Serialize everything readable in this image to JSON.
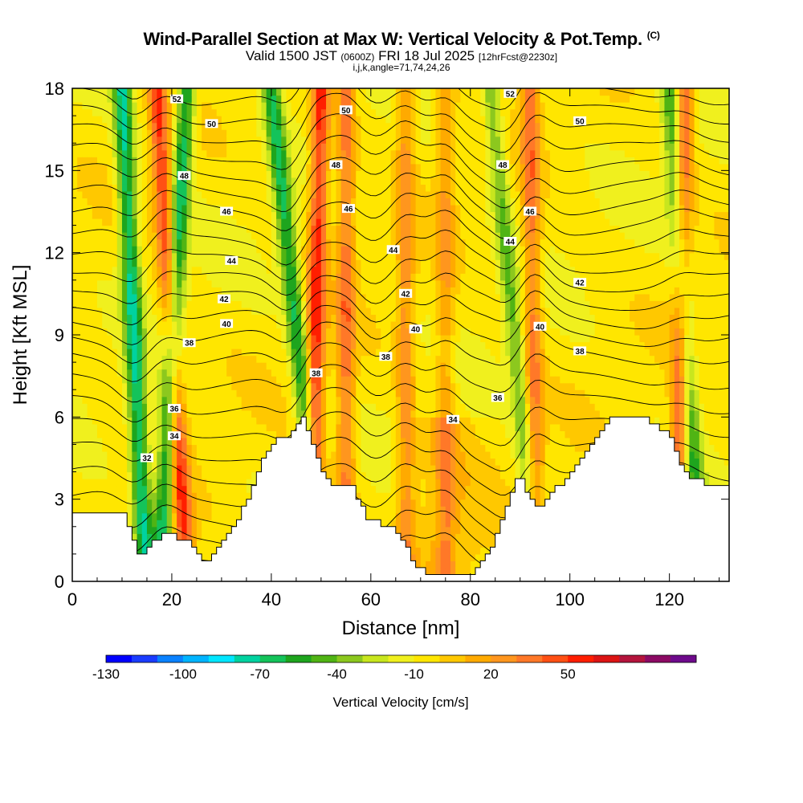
{
  "header": {
    "title": "Wind-Parallel Section at Max W: Vertical Velocity & Pot.Temp.",
    "copyright_mark": "(C)",
    "valid_prefix": "Valid 1500 JST",
    "valid_utc": "(0600Z)",
    "valid_date": "FRI 18 Jul 2025",
    "forecast_tag": "[12hrFcst@2230z]",
    "grid_info": "i,j,k,angle=71,74,24,26"
  },
  "colors": {
    "terrain": "#ffffff",
    "contour": "#000000",
    "palette": [
      "#0000ff",
      "#1a3cff",
      "#0a82ff",
      "#00b4ff",
      "#00e6ff",
      "#00d2a0",
      "#14c35a",
      "#1ea51e",
      "#50b414",
      "#8cc81e",
      "#c8e61e",
      "#f0f01e",
      "#ffe600",
      "#ffc800",
      "#ffaa00",
      "#ff961e",
      "#ff7828",
      "#ff5014",
      "#ff1e00",
      "#dc1414",
      "#b4143c",
      "#8c0a64",
      "#6e0a8c"
    ]
  },
  "chart_data": {
    "type": "heatmap",
    "xlabel": "Distance [nm]",
    "ylabel": "Height [Kft MSL]",
    "xlim": [
      0,
      132
    ],
    "ylim": [
      0,
      18
    ],
    "x_ticks": [
      0,
      20,
      40,
      60,
      80,
      100,
      120
    ],
    "y_ticks": [
      0,
      3,
      6,
      9,
      12,
      15,
      18
    ],
    "colorbar": {
      "label": "Vertical Velocity [cm/s]",
      "min": -130,
      "step": 10,
      "levels": 23,
      "tick_labels": [
        -130,
        -100,
        -70,
        -40,
        -10,
        20,
        50
      ]
    },
    "terrain_profile": {
      "x": [
        0,
        2,
        4,
        6,
        8,
        10,
        12,
        13,
        14,
        15,
        16,
        17,
        18,
        19,
        20,
        21,
        22,
        23,
        24,
        25,
        26,
        27,
        28,
        30,
        32,
        34,
        36,
        38,
        40,
        42,
        44,
        45,
        46,
        47,
        48,
        49,
        50,
        52,
        54,
        56,
        58,
        60,
        62,
        64,
        66,
        68,
        70,
        72,
        74,
        76,
        78,
        80,
        82,
        84,
        86,
        88,
        90,
        91,
        92,
        93,
        94,
        95,
        96,
        97,
        98,
        100,
        102,
        104,
        106,
        108,
        110,
        112,
        114,
        116,
        118,
        120,
        121,
        122,
        123,
        124,
        125,
        126,
        128,
        130,
        132
      ],
      "y": [
        2.3,
        2.6,
        2.6,
        2.6,
        2.6,
        2.6,
        1.8,
        1.1,
        1.0,
        1.1,
        1.4,
        1.6,
        1.6,
        1.7,
        1.8,
        1.6,
        1.5,
        1.4,
        1.4,
        1.1,
        0.8,
        0.7,
        0.9,
        1.3,
        1.8,
        2.5,
        3.3,
        4.2,
        4.9,
        5.3,
        5.3,
        5.6,
        6.0,
        5.8,
        5.4,
        4.8,
        4.0,
        3.6,
        3.6,
        3.6,
        2.8,
        2.2,
        2.1,
        2.0,
        1.5,
        1.0,
        0.4,
        0.3,
        0.3,
        0.3,
        0.3,
        0.3,
        0.5,
        1.1,
        2.0,
        3.1,
        3.8,
        3.6,
        3.1,
        2.8,
        2.6,
        2.9,
        3.3,
        3.4,
        3.4,
        3.8,
        4.3,
        5.0,
        5.4,
        5.9,
        6.0,
        6.0,
        6.0,
        5.9,
        5.6,
        5.5,
        5.1,
        4.6,
        4.1,
        3.8,
        3.8,
        3.8,
        3.5,
        3.4,
        3.4
      ]
    },
    "updraft_bands": [
      {
        "x_bottom": 18,
        "x_top": 23,
        "w": -60
      },
      {
        "x_bottom": 22.5,
        "x_top": 17,
        "w": 55
      },
      {
        "x_bottom": 14.5,
        "x_top": 10,
        "w": -65
      },
      {
        "x_bottom": 47,
        "x_top": 40,
        "w": -55
      },
      {
        "x_bottom": 48.5,
        "x_top": 50,
        "w": 60
      },
      {
        "x_bottom": 55,
        "x_top": 55,
        "w": 40
      },
      {
        "x_bottom": 92,
        "x_top": 84,
        "w": -35
      },
      {
        "x_bottom": 93,
        "x_top": 92,
        "w": 40
      },
      {
        "x_bottom": 122,
        "x_top": 123,
        "w": 50
      },
      {
        "x_bottom": 125,
        "x_top": 120,
        "w": -45
      },
      {
        "x_bottom": 75,
        "x_top": 75,
        "w": 25
      },
      {
        "x_bottom": 67,
        "x_top": 67,
        "w": 30
      }
    ],
    "isentrope_labels": [
      {
        "text": "32",
        "x": 15,
        "y": 4.5
      },
      {
        "text": "34",
        "x": 20.5,
        "y": 5.3
      },
      {
        "text": "36",
        "x": 20.5,
        "y": 6.3
      },
      {
        "text": "38",
        "x": 23.5,
        "y": 8.7
      },
      {
        "text": "38",
        "x": 49,
        "y": 7.6
      },
      {
        "text": "38",
        "x": 63,
        "y": 8.2
      },
      {
        "text": "38",
        "x": 102,
        "y": 8.4
      },
      {
        "text": "36",
        "x": 85.5,
        "y": 6.7
      },
      {
        "text": "34",
        "x": 76.5,
        "y": 5.9
      },
      {
        "text": "40",
        "x": 31,
        "y": 9.4
      },
      {
        "text": "40",
        "x": 69,
        "y": 9.2
      },
      {
        "text": "40",
        "x": 94,
        "y": 9.3
      },
      {
        "text": "42",
        "x": 30.5,
        "y": 10.3
      },
      {
        "text": "42",
        "x": 67,
        "y": 10.5
      },
      {
        "text": "42",
        "x": 102,
        "y": 10.9
      },
      {
        "text": "44",
        "x": 32,
        "y": 11.7
      },
      {
        "text": "44",
        "x": 64.5,
        "y": 12.1
      },
      {
        "text": "44",
        "x": 88,
        "y": 12.4
      },
      {
        "text": "46",
        "x": 31,
        "y": 13.5
      },
      {
        "text": "46",
        "x": 55.5,
        "y": 13.6
      },
      {
        "text": "46",
        "x": 92,
        "y": 13.5
      },
      {
        "text": "48",
        "x": 22.5,
        "y": 14.8
      },
      {
        "text": "48",
        "x": 53,
        "y": 15.2
      },
      {
        "text": "48",
        "x": 86.5,
        "y": 15.2
      },
      {
        "text": "50",
        "x": 28,
        "y": 16.7
      },
      {
        "text": "50",
        "x": 55,
        "y": 17.2
      },
      {
        "text": "50",
        "x": 102,
        "y": 16.8
      },
      {
        "text": "52",
        "x": 21,
        "y": 17.6
      },
      {
        "text": "52",
        "x": 88,
        "y": 17.8
      }
    ]
  }
}
